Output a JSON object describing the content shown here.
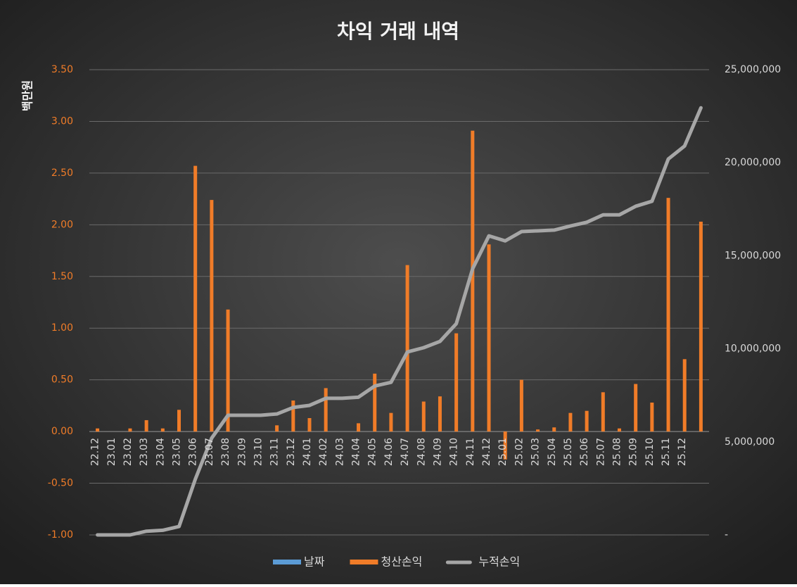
{
  "chart_data": {
    "type": "bar-line",
    "title": "차익 거래 내역",
    "y_label": "백만원",
    "categories": [
      "22.12",
      "23.01",
      "23.02",
      "23.03",
      "23.04",
      "23.05",
      "23.06",
      "23.07",
      "23.08",
      "23.09",
      "23.10",
      "23.11",
      "23.12",
      "24.01",
      "24.02",
      "24.03",
      "24.04",
      "24.05",
      "24.06",
      "24.07",
      "24.08",
      "24.09",
      "24.10",
      "24.11",
      "24.12",
      "25.01",
      "25.02",
      "25.03",
      "25.04",
      "25.05",
      "25.06",
      "25.07",
      "25.08",
      "25.09",
      "25.10",
      "25.11",
      "25.12",
      null
    ],
    "series": [
      {
        "name": "날짜",
        "color": "#5b9bd5"
      },
      {
        "name": "청산손익",
        "color": "#f07c28",
        "values": [
          0.03,
          0,
          0.03,
          0.11,
          0.03,
          0.21,
          2.57,
          2.24,
          1.18,
          0,
          0,
          0.06,
          0.3,
          0.13,
          0.42,
          0,
          0.08,
          0.56,
          0.18,
          1.61,
          0.29,
          0.34,
          0.95,
          2.91,
          1.81,
          -0.27,
          0.5,
          0.02,
          0.04,
          0.18,
          0.2,
          0.38,
          0.03,
          0.46,
          0.28,
          2.26,
          0.7,
          2.03
        ]
      },
      {
        "name": "누적손익",
        "color": "#a6a6a6",
        "axis": "y2",
        "values": [
          0,
          0,
          0,
          200000,
          250000,
          450000,
          3000000,
          5200000,
          6430000,
          6430000,
          6430000,
          6500000,
          6850000,
          6960000,
          7340000,
          7340000,
          7400000,
          8000000,
          8200000,
          9830000,
          10060000,
          10400000,
          11350000,
          14300000,
          16070000,
          15800000,
          16300000,
          16340000,
          16380000,
          16600000,
          16800000,
          17200000,
          17200000,
          17660000,
          17930000,
          20200000,
          20900000,
          22950000
        ]
      }
    ],
    "ylim": [
      -1,
      3.5
    ],
    "yticks": [
      {
        "value": -1,
        "label": "-1.00"
      },
      {
        "value": -0.5,
        "label": "-0.50"
      },
      {
        "value": 0,
        "label": "0.00"
      },
      {
        "value": 0.5,
        "label": "0.50"
      },
      {
        "value": 1,
        "label": "1.00"
      },
      {
        "value": 1.5,
        "label": "1.50"
      },
      {
        "value": 2,
        "label": "2.00"
      },
      {
        "value": 2.5,
        "label": "2.50"
      },
      {
        "value": 3,
        "label": "3.00"
      },
      {
        "value": 3.5,
        "label": "3.50"
      }
    ],
    "y2lim": [
      0,
      25000000
    ],
    "y2ticks": [
      {
        "value": 0,
        "label": "-"
      },
      {
        "value": 5000000,
        "label": "5,000,000"
      },
      {
        "value": 10000000,
        "label": "10,000,000"
      },
      {
        "value": 15000000,
        "label": "15,000,000"
      },
      {
        "value": 20000000,
        "label": "20,000,000"
      },
      {
        "value": 25000000,
        "label": "25,000,000"
      }
    ],
    "grid": true,
    "legend": "bottom"
  }
}
